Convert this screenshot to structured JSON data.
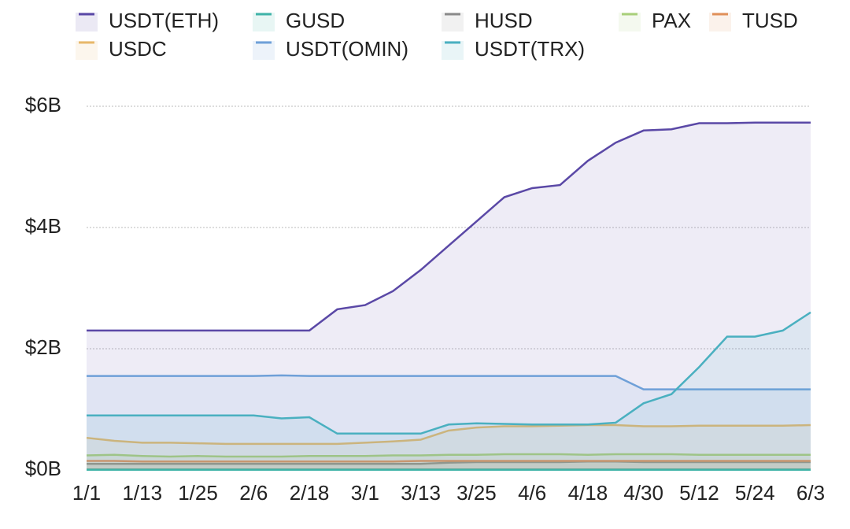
{
  "chart_data": {
    "type": "line",
    "categories": [
      "1/1",
      null,
      "1/13",
      null,
      "1/25",
      null,
      "2/6",
      null,
      "2/18",
      null,
      "3/1",
      null,
      "3/13",
      null,
      "3/25",
      null,
      "4/6",
      null,
      "4/18",
      null,
      "4/30",
      null,
      "5/12",
      null,
      "5/24",
      null,
      "6/3"
    ],
    "series": [
      {
        "name": "USDT(ETH)",
        "color": "#5a48a6",
        "values": [
          2.3,
          2.3,
          2.3,
          2.3,
          2.3,
          2.3,
          2.3,
          2.3,
          2.3,
          2.65,
          2.72,
          2.95,
          3.3,
          3.7,
          4.1,
          4.5,
          4.65,
          4.7,
          5.1,
          5.4,
          5.6,
          5.62,
          5.72,
          5.72,
          5.73,
          5.73,
          5.73
        ]
      },
      {
        "name": "GUSD",
        "color": "#3fb3a8",
        "values": [
          0.01,
          0.01,
          0.01,
          0.01,
          0.01,
          0.01,
          0.01,
          0.01,
          0.01,
          0.01,
          0.01,
          0.01,
          0.01,
          0.01,
          0.01,
          0.01,
          0.01,
          0.01,
          0.01,
          0.01,
          0.01,
          0.01,
          0.01,
          0.01,
          0.01,
          0.01,
          0.01
        ]
      },
      {
        "name": "HUSD",
        "color": "#8a8a8a",
        "values": [
          0.1,
          0.1,
          0.1,
          0.1,
          0.1,
          0.1,
          0.1,
          0.1,
          0.1,
          0.1,
          0.1,
          0.1,
          0.1,
          0.12,
          0.13,
          0.13,
          0.13,
          0.13,
          0.14,
          0.14,
          0.13,
          0.13,
          0.13,
          0.13,
          0.13,
          0.13,
          0.13
        ]
      },
      {
        "name": "PAX",
        "color": "#a8cf7a",
        "values": [
          0.24,
          0.25,
          0.23,
          0.22,
          0.23,
          0.22,
          0.22,
          0.22,
          0.23,
          0.23,
          0.23,
          0.24,
          0.24,
          0.25,
          0.25,
          0.26,
          0.26,
          0.26,
          0.25,
          0.26,
          0.26,
          0.26,
          0.25,
          0.25,
          0.25,
          0.25,
          0.25
        ]
      },
      {
        "name": "TUSD",
        "color": "#e0905a",
        "values": [
          0.15,
          0.15,
          0.14,
          0.14,
          0.14,
          0.14,
          0.14,
          0.14,
          0.14,
          0.14,
          0.14,
          0.14,
          0.15,
          0.15,
          0.15,
          0.15,
          0.15,
          0.15,
          0.15,
          0.15,
          0.15,
          0.15,
          0.15,
          0.15,
          0.15,
          0.15,
          0.15
        ]
      },
      {
        "name": "USDC",
        "color": "#e7b86a",
        "values": [
          0.53,
          0.48,
          0.45,
          0.45,
          0.44,
          0.43,
          0.43,
          0.43,
          0.43,
          0.43,
          0.45,
          0.47,
          0.5,
          0.65,
          0.7,
          0.72,
          0.72,
          0.73,
          0.74,
          0.74,
          0.72,
          0.72,
          0.73,
          0.73,
          0.73,
          0.73,
          0.74
        ]
      },
      {
        "name": "USDT(OMIN)",
        "color": "#6fa0d8",
        "values": [
          1.55,
          1.55,
          1.55,
          1.55,
          1.55,
          1.55,
          1.55,
          1.56,
          1.55,
          1.55,
          1.55,
          1.55,
          1.55,
          1.55,
          1.55,
          1.55,
          1.55,
          1.55,
          1.55,
          1.55,
          1.33,
          1.33,
          1.33,
          1.33,
          1.33,
          1.33,
          1.33
        ]
      },
      {
        "name": "USDT(TRX)",
        "color": "#4ab0c0",
        "values": [
          0.9,
          0.9,
          0.9,
          0.9,
          0.9,
          0.9,
          0.9,
          0.85,
          0.87,
          0.6,
          0.6,
          0.6,
          0.6,
          0.75,
          0.77,
          0.76,
          0.75,
          0.75,
          0.75,
          0.78,
          1.1,
          1.25,
          1.7,
          2.2,
          2.2,
          2.3,
          2.6
        ]
      }
    ],
    "ylim": [
      0,
      6.2
    ],
    "yticks": [
      {
        "value": 0,
        "label": "$0B"
      },
      {
        "value": 2,
        "label": "$2B"
      },
      {
        "value": 4,
        "label": "$4B"
      },
      {
        "value": 6,
        "label": "$6B"
      }
    ],
    "grid": true,
    "legend": "top"
  }
}
